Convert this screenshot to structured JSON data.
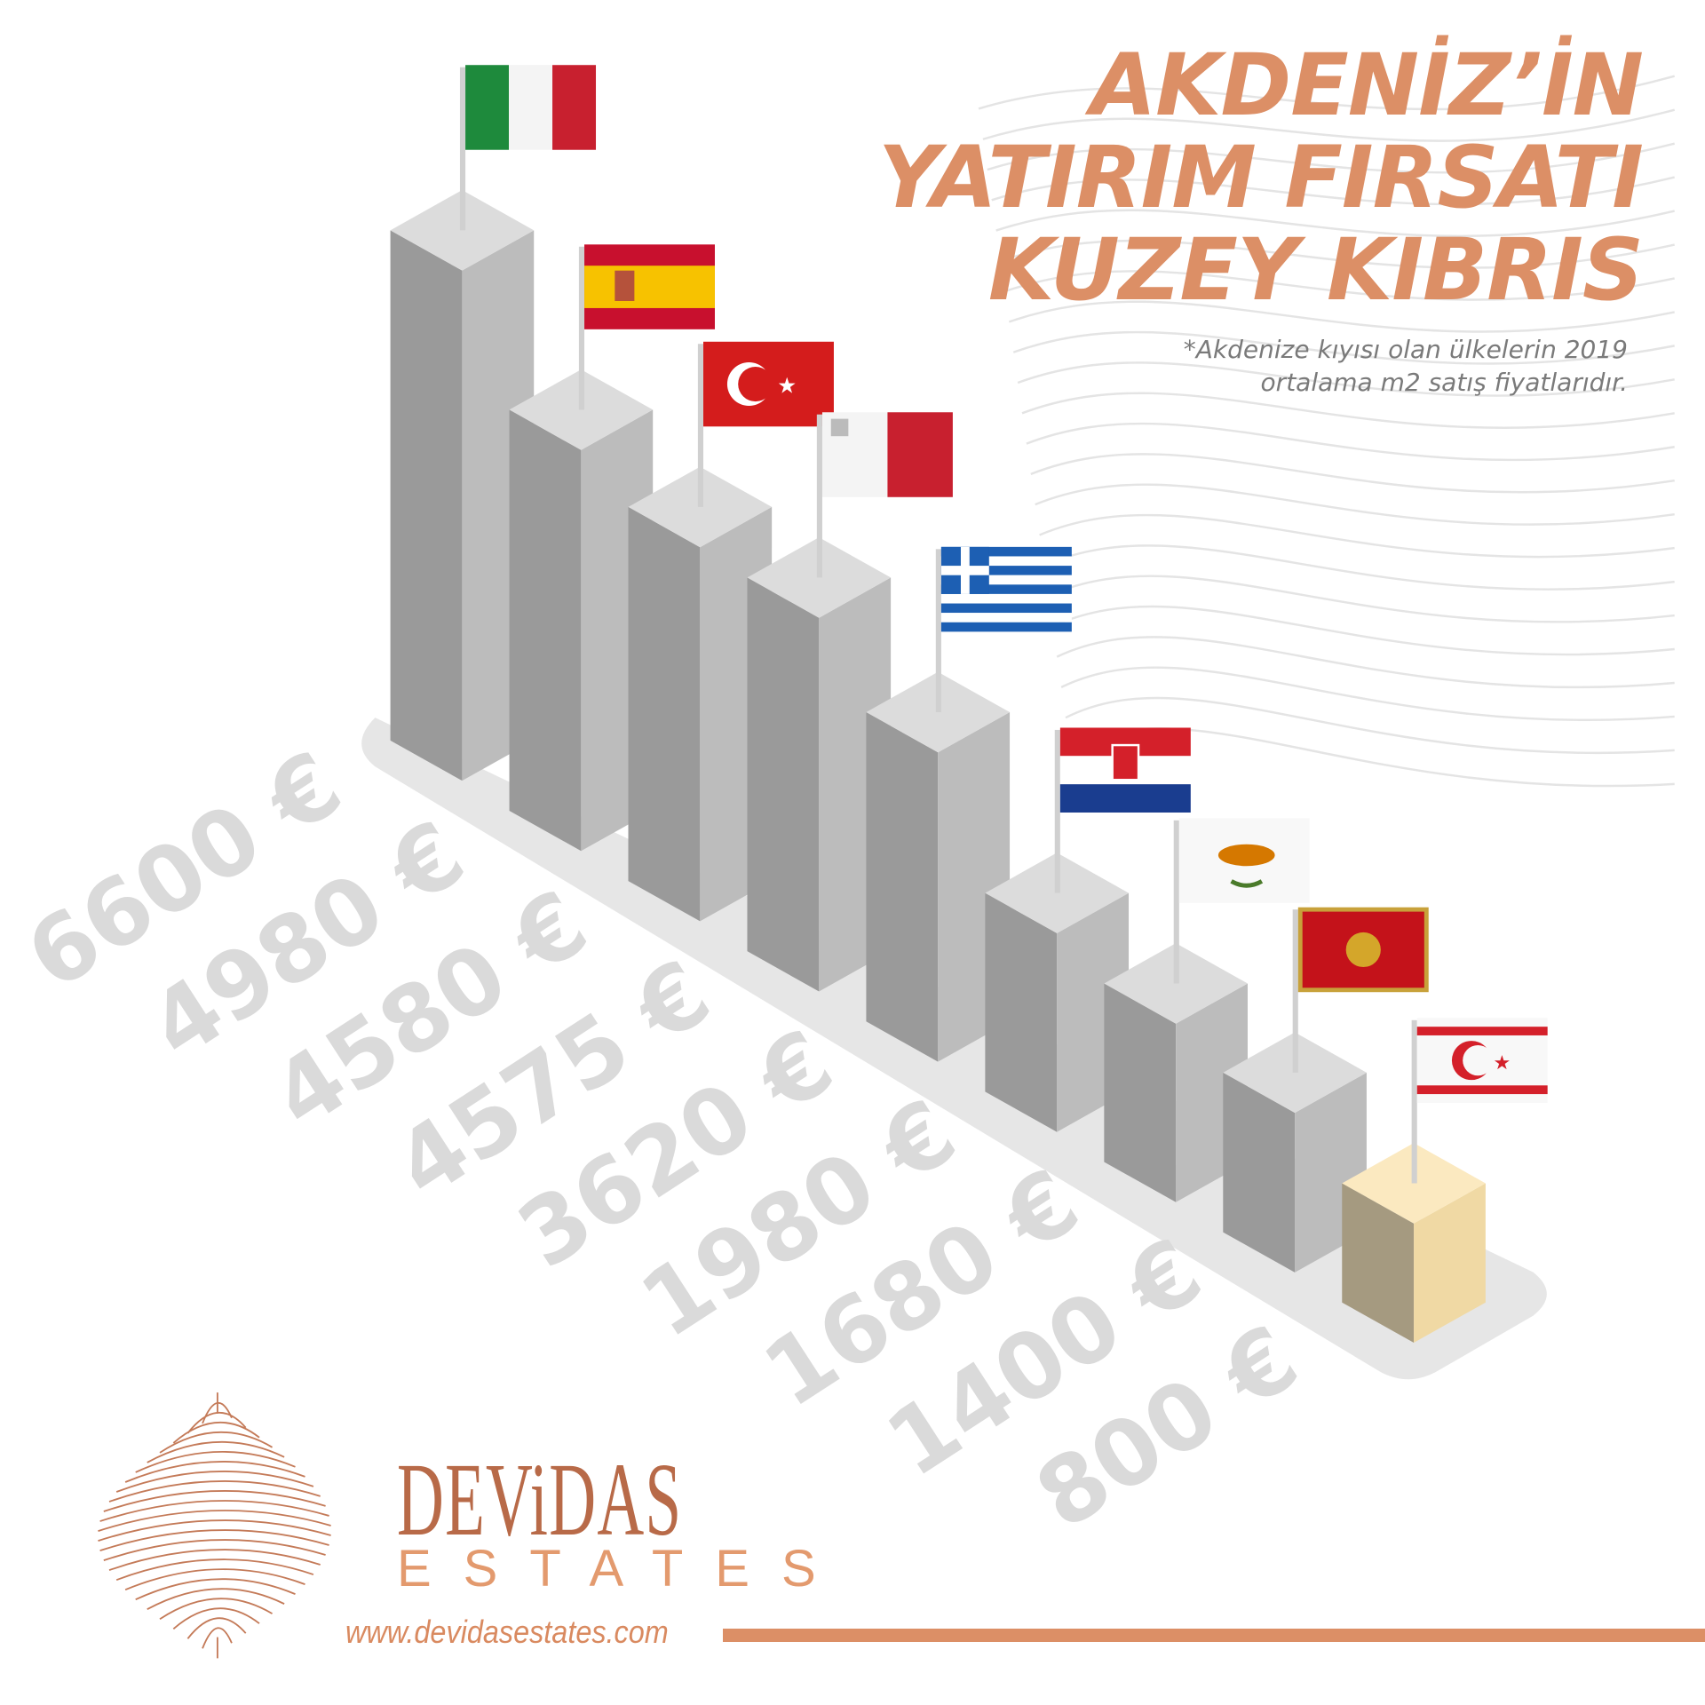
{
  "title": {
    "line1": "AKDENİZ’İN",
    "line2": "YATIRIM FIRSATI",
    "line3": "KUZEY KIBRIS",
    "color": "#dc8f66"
  },
  "subtitle": {
    "line1": "*Akdenize kıyısı olan ülkelerin 2019",
    "line2": "ortalama m2  satış fiyatlarıdır."
  },
  "chart_data": {
    "type": "bar",
    "style": "isometric-3d",
    "unit": "€",
    "flags": [
      "italy-flag-icon",
      "spain-flag-icon",
      "turkey-flag-icon",
      "malta-flag-icon",
      "greece-flag-icon",
      "croatia-flag-icon",
      "cyprus-flag-icon",
      "montenegro-flag-icon",
      "northern-cyprus-flag-icon"
    ],
    "values": [
      6600,
      4980,
      4580,
      4575,
      3620,
      1980,
      1680,
      1400,
      800
    ],
    "labels": [
      "6600 €",
      "4980 €",
      "4580 €",
      "4575 €",
      "3620 €",
      "1980 €",
      "1680 €",
      "1400 €",
      "800 €"
    ],
    "bar_color": "#b0b0b0",
    "highlight_color": "#f3dfae",
    "highlight_index": 8
  },
  "brand": {
    "name": "DEViDAS",
    "sub": "ESTATES",
    "url": "www.devidasestates.com",
    "color": "#dc8f66"
  }
}
